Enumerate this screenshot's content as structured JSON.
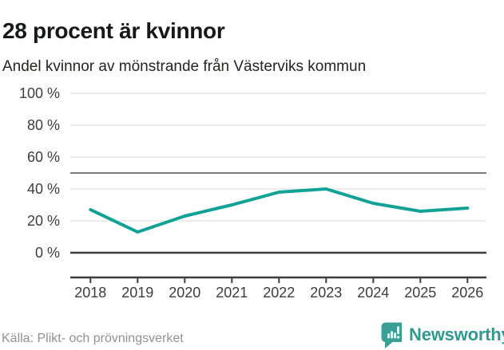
{
  "header": {
    "title": "28 procent är kvinnor",
    "subtitle": "Andel kvinnor av mönstrande från Västerviks kommun"
  },
  "chart_data": {
    "type": "line",
    "title": "28 procent är kvinnor",
    "subtitle": "Andel kvinnor av mönstrande från Västerviks kommun",
    "categories": [
      "2018",
      "2019",
      "2020",
      "2021",
      "2022",
      "2023",
      "2024",
      "2025",
      "2026"
    ],
    "values": [
      27,
      13,
      23,
      30,
      38,
      40,
      31,
      26,
      28
    ],
    "unit": "%",
    "ylim": [
      0,
      100
    ],
    "y_tick_interval": 20,
    "y_tick_labels": [
      "0 %",
      "20 %",
      "40 %",
      "60 %",
      "80 %",
      "100 %"
    ],
    "reference_line": 50,
    "grid": "horizontal",
    "legend": "none",
    "marker": "none"
  },
  "footer": {
    "source": "Källa: Plikt- och prövningsverket",
    "logo_text": "Newsworthy"
  },
  "colors": {
    "line_teal": "#10a296",
    "logo_teal": "#3aa096",
    "logo_text_teal": "#2e9a92",
    "grid_light": "#e5e5e5",
    "grid_mid": "#7b7b7b",
    "axis_dark": "#3e3e3e",
    "title_text": "#161a16",
    "axis_text": "#3d3d3d",
    "source_text": "#8f9294"
  }
}
